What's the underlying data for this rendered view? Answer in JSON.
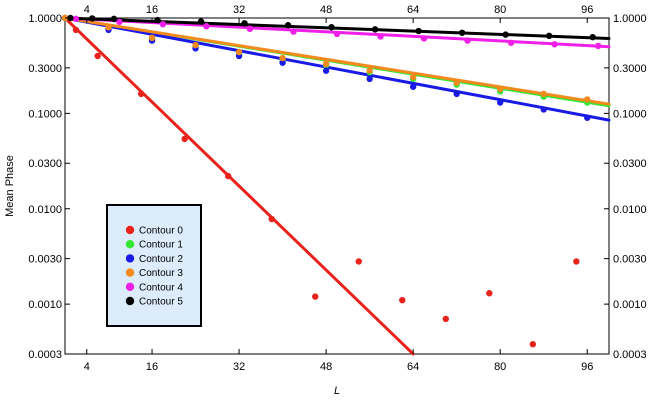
{
  "chart_data": {
    "type": "scatter",
    "title": "",
    "xlabel": "L",
    "ylabel": "Mean Phase",
    "xlim": [
      0,
      100
    ],
    "ylim": [
      0.0003,
      1.0
    ],
    "yscale": "log",
    "x_ticks": [
      4,
      16,
      32,
      48,
      64,
      80,
      96
    ],
    "x_tick_labels": [
      "4",
      "16",
      "32",
      "48",
      "64",
      "80",
      "96"
    ],
    "y_ticks": [
      1.0,
      0.3,
      0.1,
      0.03,
      0.01,
      0.003,
      0.001,
      0.0003
    ],
    "y_tick_labels": [
      "1.0000",
      "0.3000",
      "0.1000",
      "0.0300",
      "0.0100",
      "0.0030",
      "0.0010",
      "0.0003"
    ],
    "grid": false,
    "legend_position": "lower-left",
    "series": [
      {
        "name": "Contour 0",
        "color": "#e8231c",
        "points": [
          [
            2,
            0.75
          ],
          [
            6,
            0.4
          ],
          [
            14,
            0.16
          ],
          [
            22,
            0.054
          ],
          [
            30,
            0.022
          ],
          [
            38,
            0.0078
          ],
          [
            46,
            0.0012
          ],
          [
            54,
            0.0028
          ],
          [
            62,
            0.0011
          ],
          [
            70,
            0.0007
          ],
          [
            78,
            0.0013
          ],
          [
            86,
            0.00038
          ],
          [
            94,
            0.0028
          ]
        ],
        "fit": [
          [
            0,
            1.0
          ],
          [
            64,
            0.0003
          ]
        ]
      },
      {
        "name": "Contour 1",
        "color": "#33e633",
        "points": [
          [
            0,
            1.0
          ],
          [
            8,
            0.78
          ],
          [
            16,
            0.6
          ],
          [
            24,
            0.5
          ],
          [
            32,
            0.42
          ],
          [
            40,
            0.36
          ],
          [
            48,
            0.32
          ],
          [
            56,
            0.27
          ],
          [
            64,
            0.23
          ],
          [
            72,
            0.2
          ],
          [
            80,
            0.17
          ],
          [
            88,
            0.15
          ],
          [
            96,
            0.13
          ]
        ],
        "fit": [
          [
            0,
            1.0
          ],
          [
            100,
            0.12
          ]
        ]
      },
      {
        "name": "Contour 2",
        "color": "#1a1ae6",
        "points": [
          [
            0,
            1.0
          ],
          [
            8,
            0.75
          ],
          [
            16,
            0.58
          ],
          [
            24,
            0.48
          ],
          [
            32,
            0.4
          ],
          [
            40,
            0.34
          ],
          [
            48,
            0.28
          ],
          [
            56,
            0.23
          ],
          [
            64,
            0.19
          ],
          [
            72,
            0.16
          ],
          [
            80,
            0.13
          ],
          [
            88,
            0.11
          ],
          [
            96,
            0.09
          ]
        ],
        "fit": [
          [
            0,
            1.0
          ],
          [
            100,
            0.085
          ]
        ]
      },
      {
        "name": "Contour 3",
        "color": "#f28a1e",
        "points": [
          [
            0,
            1.0
          ],
          [
            8,
            0.8
          ],
          [
            16,
            0.62
          ],
          [
            24,
            0.52
          ],
          [
            32,
            0.44
          ],
          [
            40,
            0.38
          ],
          [
            48,
            0.33
          ],
          [
            56,
            0.28
          ],
          [
            64,
            0.24
          ],
          [
            72,
            0.21
          ],
          [
            80,
            0.18
          ],
          [
            88,
            0.16
          ],
          [
            96,
            0.14
          ]
        ],
        "fit": [
          [
            0,
            1.0
          ],
          [
            100,
            0.125
          ]
        ]
      },
      {
        "name": "Contour 4",
        "color": "#f020e8",
        "points": [
          [
            2,
            0.98
          ],
          [
            10,
            0.91
          ],
          [
            18,
            0.86
          ],
          [
            26,
            0.82
          ],
          [
            34,
            0.77
          ],
          [
            42,
            0.72
          ],
          [
            50,
            0.68
          ],
          [
            58,
            0.64
          ],
          [
            66,
            0.61
          ],
          [
            74,
            0.58
          ],
          [
            82,
            0.55
          ],
          [
            90,
            0.53
          ],
          [
            98,
            0.51
          ]
        ],
        "fit": [
          [
            0,
            1.0
          ],
          [
            100,
            0.5
          ]
        ]
      },
      {
        "name": "Contour 5",
        "color": "#000000",
        "points": [
          [
            1,
            1.0
          ],
          [
            5,
            0.99
          ],
          [
            9,
            0.98
          ],
          [
            17,
            0.95
          ],
          [
            25,
            0.92
          ],
          [
            33,
            0.88
          ],
          [
            41,
            0.84
          ],
          [
            49,
            0.8
          ],
          [
            57,
            0.76
          ],
          [
            65,
            0.73
          ],
          [
            73,
            0.7
          ],
          [
            81,
            0.67
          ],
          [
            89,
            0.65
          ],
          [
            97,
            0.63
          ]
        ],
        "fit": [
          [
            0,
            1.0
          ],
          [
            100,
            0.61
          ]
        ]
      }
    ]
  }
}
